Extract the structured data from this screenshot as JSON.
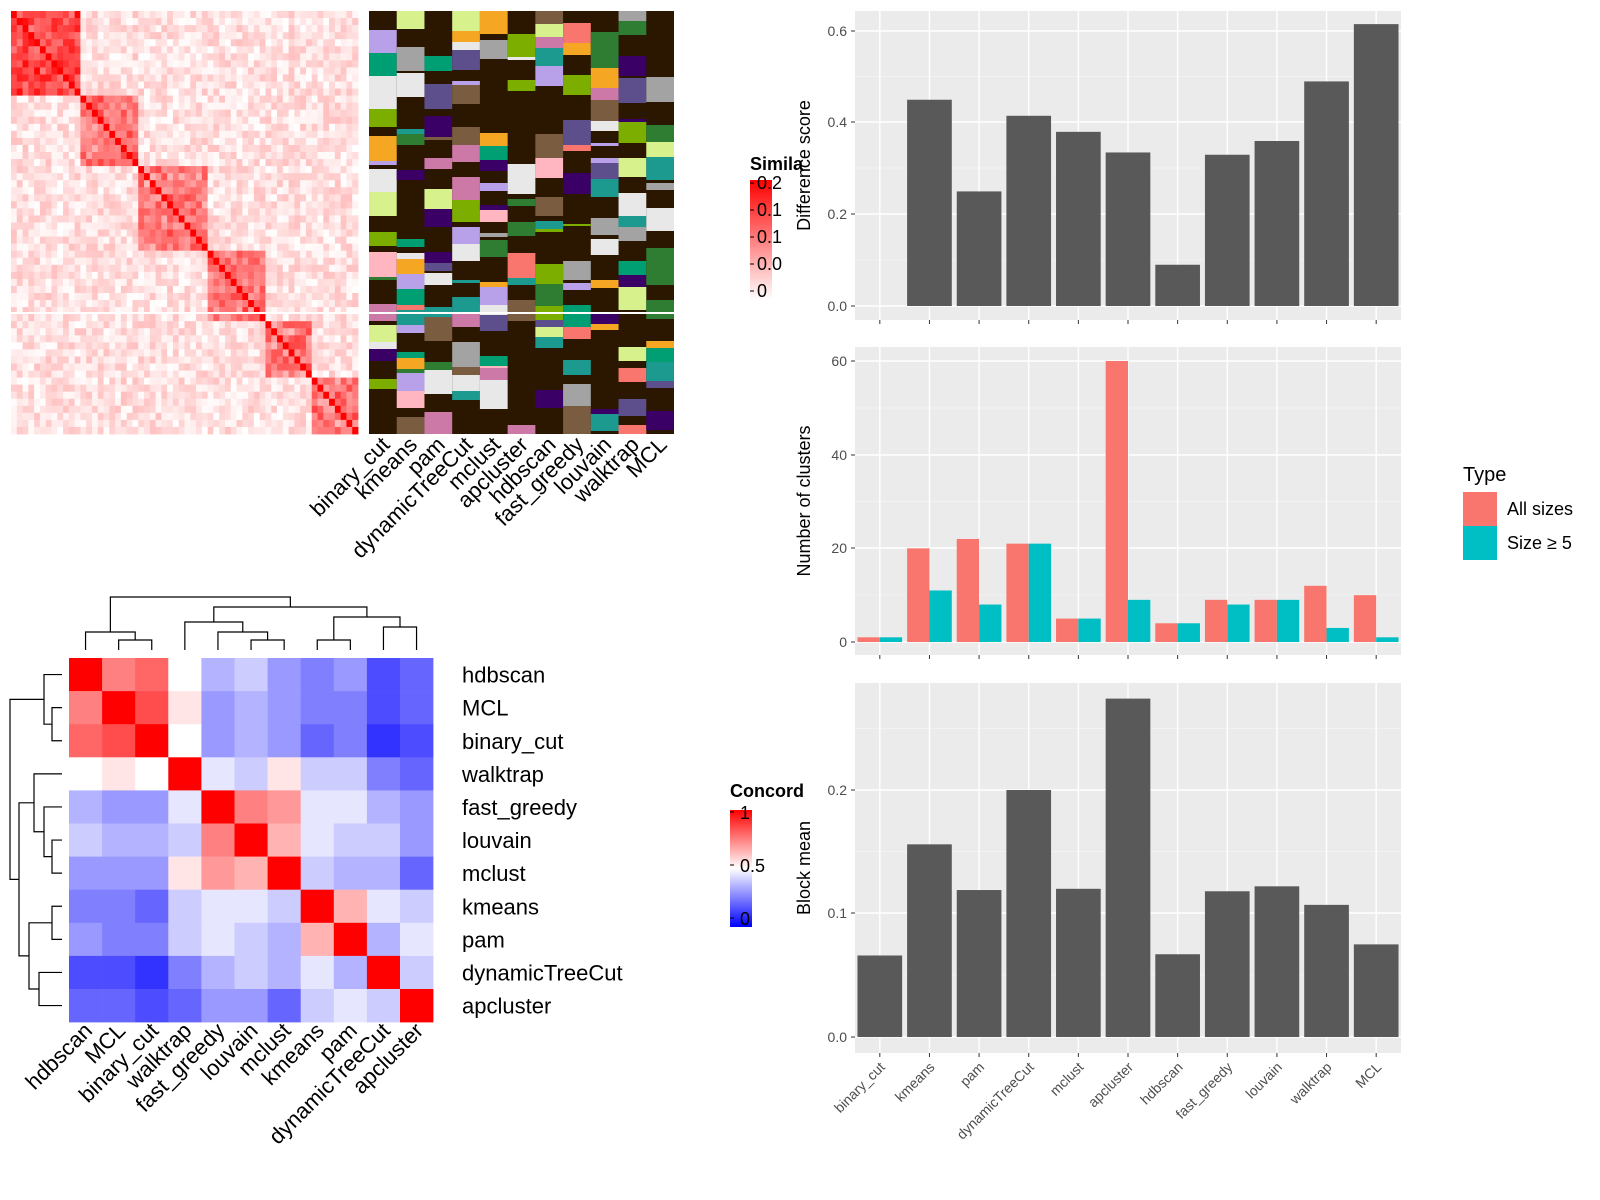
{
  "colors": {
    "bar": "#595959",
    "all_sizes": "#F8766D",
    "size_ge5": "#00BFC4",
    "panel_bg": "#EBEBEB",
    "heat_high": "#FF0000",
    "heat_mid": "#FFFFFF",
    "heat_low": "#0000FF",
    "annotation_bg": "#2B1700"
  },
  "heatmap_similarity": {
    "legend_title": "Simila",
    "legend_ticks": [
      "0.2",
      "0.1",
      "0.1",
      "0.0",
      "0"
    ],
    "method_labels": [
      "binary_cut",
      "kmeans",
      "pam",
      "dynamicTreeCut",
      "mclust",
      "apcluster",
      "hdbscan",
      "fast_greedy",
      "louvain",
      "walktrap",
      "MCL"
    ]
  },
  "heatmap_concordance": {
    "legend_title": "Concord",
    "legend_ticks": [
      "1",
      "0.5",
      "0"
    ],
    "methods": [
      "hdbscan",
      "MCL",
      "binary_cut",
      "walktrap",
      "fast_greedy",
      "louvain",
      "mclust",
      "kmeans",
      "pam",
      "dynamicTreeCut",
      "apcluster"
    ],
    "values": [
      [
        1.0,
        0.75,
        0.8,
        0.5,
        0.35,
        0.4,
        0.3,
        0.25,
        0.3,
        0.15,
        0.2
      ],
      [
        0.75,
        1.0,
        0.85,
        0.55,
        0.3,
        0.35,
        0.3,
        0.25,
        0.25,
        0.15,
        0.2
      ],
      [
        0.8,
        0.85,
        1.0,
        0.5,
        0.3,
        0.35,
        0.3,
        0.2,
        0.25,
        0.1,
        0.15
      ],
      [
        0.5,
        0.55,
        0.5,
        1.0,
        0.45,
        0.4,
        0.55,
        0.4,
        0.4,
        0.25,
        0.2
      ],
      [
        0.35,
        0.3,
        0.3,
        0.45,
        1.0,
        0.75,
        0.7,
        0.45,
        0.45,
        0.35,
        0.3
      ],
      [
        0.4,
        0.35,
        0.35,
        0.4,
        0.75,
        1.0,
        0.65,
        0.45,
        0.4,
        0.4,
        0.3
      ],
      [
        0.3,
        0.3,
        0.3,
        0.55,
        0.7,
        0.65,
        1.0,
        0.4,
        0.35,
        0.35,
        0.2
      ],
      [
        0.25,
        0.25,
        0.2,
        0.4,
        0.45,
        0.45,
        0.4,
        1.0,
        0.65,
        0.45,
        0.4
      ],
      [
        0.3,
        0.25,
        0.25,
        0.4,
        0.45,
        0.4,
        0.35,
        0.65,
        1.0,
        0.35,
        0.45
      ],
      [
        0.15,
        0.15,
        0.1,
        0.25,
        0.35,
        0.4,
        0.35,
        0.45,
        0.35,
        1.0,
        0.4
      ],
      [
        0.2,
        0.2,
        0.15,
        0.2,
        0.3,
        0.3,
        0.2,
        0.4,
        0.45,
        0.4,
        1.0
      ]
    ]
  },
  "chart_data": [
    {
      "type": "bar",
      "title": "",
      "ylabel": "Difference score",
      "ylim": [
        0,
        0.64
      ],
      "yticks": [
        "0.0",
        "0.2",
        "0.4",
        "0.6"
      ],
      "categories": [
        "binary_cut",
        "kmeans",
        "pam",
        "dynamicTreeCut",
        "mclust",
        "apcluster",
        "hdbscan",
        "fast_greedy",
        "louvain",
        "walktrap",
        "MCL"
      ],
      "values": [
        0.0,
        0.45,
        0.25,
        0.415,
        0.38,
        0.335,
        0.09,
        0.33,
        0.36,
        0.49,
        0.615
      ]
    },
    {
      "type": "bar",
      "title": "",
      "ylabel": "Number of clusters",
      "ylim": [
        0,
        63
      ],
      "yticks": [
        "0",
        "20",
        "40",
        "60"
      ],
      "legend_title": "Type",
      "legend_position": "right",
      "categories": [
        "binary_cut",
        "kmeans",
        "pam",
        "dynamicTreeCut",
        "mclust",
        "apcluster",
        "hdbscan",
        "fast_greedy",
        "louvain",
        "walktrap",
        "MCL"
      ],
      "series": [
        {
          "name": "All sizes",
          "values": [
            1,
            20,
            22,
            21,
            5,
            60,
            4,
            9,
            9,
            12,
            10
          ]
        },
        {
          "name": "Size ≥ 5",
          "values": [
            1,
            11,
            8,
            21,
            5,
            9,
            4,
            8,
            9,
            3,
            1
          ]
        }
      ]
    },
    {
      "type": "bar",
      "title": "",
      "ylabel": "Block mean",
      "ylim": [
        0,
        0.28
      ],
      "yticks": [
        "0.0",
        "0.1",
        "0.2"
      ],
      "categories": [
        "binary_cut",
        "kmeans",
        "pam",
        "dynamicTreeCut",
        "mclust",
        "apcluster",
        "hdbscan",
        "fast_greedy",
        "louvain",
        "walktrap",
        "MCL"
      ],
      "values": [
        0.066,
        0.156,
        0.119,
        0.2,
        0.12,
        0.274,
        0.067,
        0.118,
        0.122,
        0.107,
        0.075
      ]
    }
  ]
}
